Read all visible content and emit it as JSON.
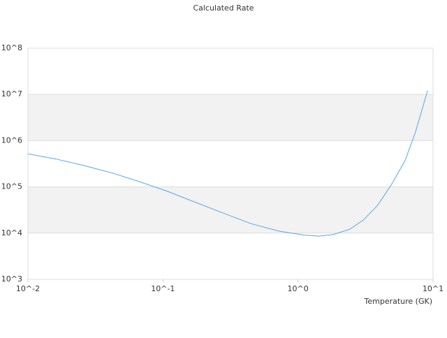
{
  "chart_data": {
    "type": "line",
    "title": "Calculated Rate",
    "x_label": "Temperature (GK)",
    "xscale": "log",
    "yscale": "log",
    "grid": true,
    "band_color": "#f2f2f2",
    "xlim": [
      0.01,
      10
    ],
    "ylim": [
      1000,
      100000000
    ],
    "xticks": [
      {
        "value": 0.01,
        "label": "10^-2"
      },
      {
        "value": 0.1,
        "label": "10^-1"
      },
      {
        "value": 1,
        "label": "10^0"
      },
      {
        "value": 10,
        "label": "10^1"
      }
    ],
    "yticks": [
      {
        "value": 1000,
        "label": "10^3"
      },
      {
        "value": 10000,
        "label": "10^4"
      },
      {
        "value": 100000,
        "label": "10^5"
      },
      {
        "value": 1000000,
        "label": "10^6"
      },
      {
        "value": 10000000,
        "label": "10^7"
      },
      {
        "value": 100000000,
        "label": "10^8"
      }
    ],
    "x": [
      0.01,
      0.0161,
      0.026,
      0.042,
      0.067,
      0.108,
      0.175,
      0.28,
      0.45,
      0.73,
      1.13,
      1.44,
      1.82,
      2.4,
      3.04,
      3.86,
      4.9,
      6.2,
      7.4,
      9.1
    ],
    "series": [
      {
        "color": "#5aa5e6",
        "values": [
          520000,
          400000,
          290000,
          200000,
          130000,
          80000,
          46000,
          27000,
          16000,
          11000,
          9000,
          8600,
          9300,
          12000,
          19000,
          39000,
          110000,
          370000,
          1500000,
          12000000
        ]
      }
    ]
  }
}
